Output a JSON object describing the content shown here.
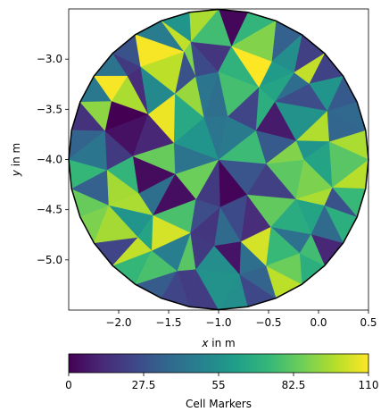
{
  "chart_data": {
    "type": "heatmap",
    "subtype": "triangular mesh (tripcolor) colored by cell marker",
    "title": "",
    "xlabel": "x in m",
    "ylabel": "y in m",
    "xlim": [
      -2.5,
      0.5
    ],
    "ylim": [
      -5.5,
      -2.5
    ],
    "x_ticks": [
      -2.0,
      -1.5,
      -1.0,
      -0.5,
      0.0,
      0.5
    ],
    "x_tick_labels": [
      "−2.0",
      "−1.5",
      "−1.0",
      "−0.5",
      "0.0",
      "0.5"
    ],
    "y_ticks": [
      -3.0,
      -3.5,
      -4.0,
      -4.5,
      -5.0
    ],
    "y_tick_labels": [
      "−3.0",
      "−3.5",
      "−4.0",
      "−4.5",
      "−5.0"
    ],
    "domain_shape": "circle",
    "domain_center": [
      -1.0,
      -4.0
    ],
    "domain_radius": 1.5,
    "boundary_color": "#000000",
    "colormap": "viridis",
    "colormap_stops": [
      "#440154",
      "#482878",
      "#3e4989",
      "#31688e",
      "#26828e",
      "#1f9e89",
      "#35b779",
      "#6ece58",
      "#b5de2b",
      "#fde725"
    ],
    "colorbar": {
      "label": "Cell Markers",
      "orientation": "horizontal",
      "placement": "below",
      "min": 0,
      "max": 110,
      "ticks": [
        0,
        27.5,
        55,
        82.5,
        110
      ],
      "tick_labels": [
        "0",
        "27.5",
        "55",
        "82.5",
        "110"
      ]
    },
    "n_cells_estimated": 110,
    "cell_value_range": [
      0,
      110
    ]
  }
}
